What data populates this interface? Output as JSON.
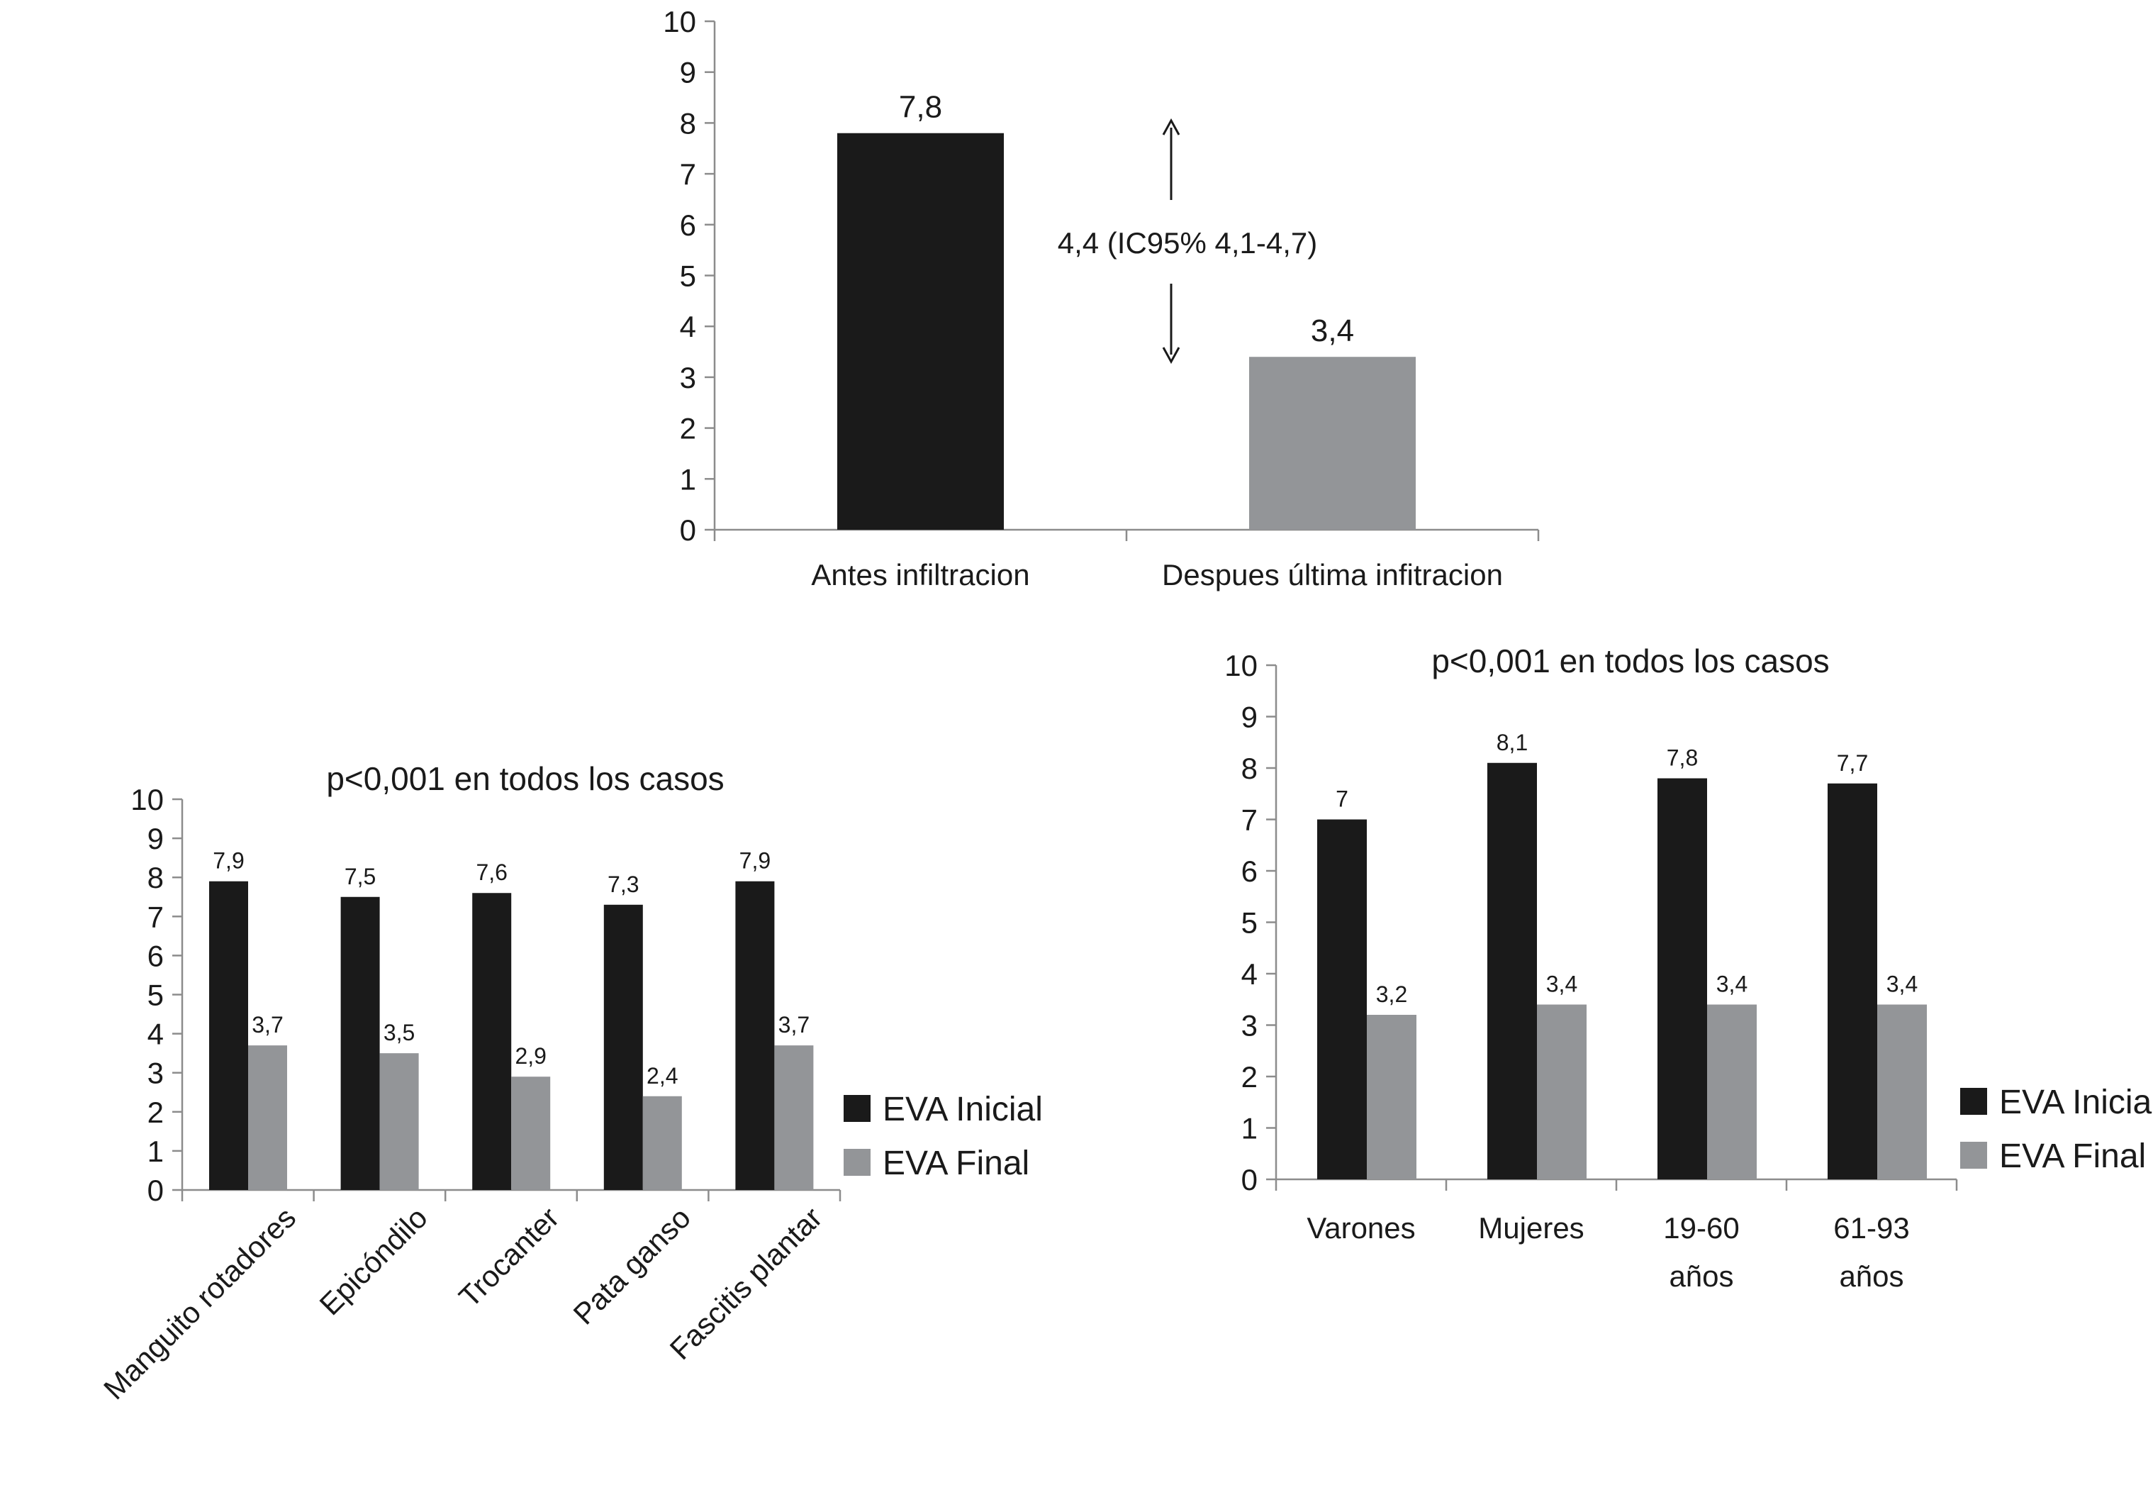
{
  "colors": {
    "inicial": "#1a1a1a",
    "final": "#939598",
    "axis": "#8c8c8c"
  },
  "charts": {
    "top": {
      "annotation": "4,4 (IC95% 4,1-4,7)"
    },
    "left": {
      "title": "p<0,001 en todos los casos",
      "legend": [
        "EVA Inicial",
        "EVA Final"
      ]
    },
    "right": {
      "title": "p<0,001 en todos los casos",
      "legend": [
        "EVA Inicial",
        "EVA Final"
      ]
    }
  },
  "chart_data": [
    {
      "type": "bar",
      "title": "",
      "categories": [
        "Antes infiltracion",
        "Despues última infitracion"
      ],
      "values": [
        7.8,
        3.4
      ],
      "labels": [
        "7,8",
        "3,4"
      ],
      "ylim": [
        0,
        10
      ],
      "yticks": [
        "0",
        "1",
        "2",
        "3",
        "4",
        "5",
        "6",
        "7",
        "8",
        "9",
        "10"
      ],
      "annotation": "4,4 (IC95% 4,1-4,7)",
      "grid": false
    },
    {
      "type": "bar",
      "title": "p<0,001 en todos los casos",
      "categories": [
        "Manguito rotadores",
        "Epicóndilo",
        "Trocanter",
        "Pata ganso",
        "Fascitis plantar"
      ],
      "series": [
        {
          "name": "EVA Inicial",
          "values": [
            7.9,
            7.5,
            7.6,
            7.3,
            7.9
          ],
          "labels": [
            "7,9",
            "7,5",
            "7,6",
            "7,3",
            "7,9"
          ]
        },
        {
          "name": "EVA Final",
          "values": [
            3.7,
            3.5,
            2.9,
            2.4,
            3.7
          ],
          "labels": [
            "3,7",
            "3,5",
            "2,9",
            "2,4",
            "3,7"
          ]
        }
      ],
      "ylim": [
        0,
        10
      ],
      "yticks": [
        "0",
        "1",
        "2",
        "3",
        "4",
        "5",
        "6",
        "7",
        "8",
        "9",
        "10"
      ],
      "legend_position": "right",
      "grid": false
    },
    {
      "type": "bar",
      "title": "p<0,001 en todos los casos",
      "categories": [
        [
          "Varones"
        ],
        [
          "Mujeres"
        ],
        [
          "19-60",
          "años"
        ],
        [
          "61-93",
          "años"
        ]
      ],
      "series": [
        {
          "name": "EVA Inicial",
          "values": [
            7,
            8.1,
            7.8,
            7.7
          ],
          "labels": [
            "7",
            "8,1",
            "7,8",
            "7,7"
          ]
        },
        {
          "name": "EVA Final",
          "values": [
            3.2,
            3.4,
            3.4,
            3.4
          ],
          "labels": [
            "3,2",
            "3,4",
            "3,4",
            "3,4"
          ]
        }
      ],
      "ylim": [
        0,
        10
      ],
      "yticks": [
        "0",
        "1",
        "2",
        "3",
        "4",
        "5",
        "6",
        "7",
        "8",
        "9",
        "10"
      ],
      "legend_position": "right",
      "grid": false
    }
  ]
}
